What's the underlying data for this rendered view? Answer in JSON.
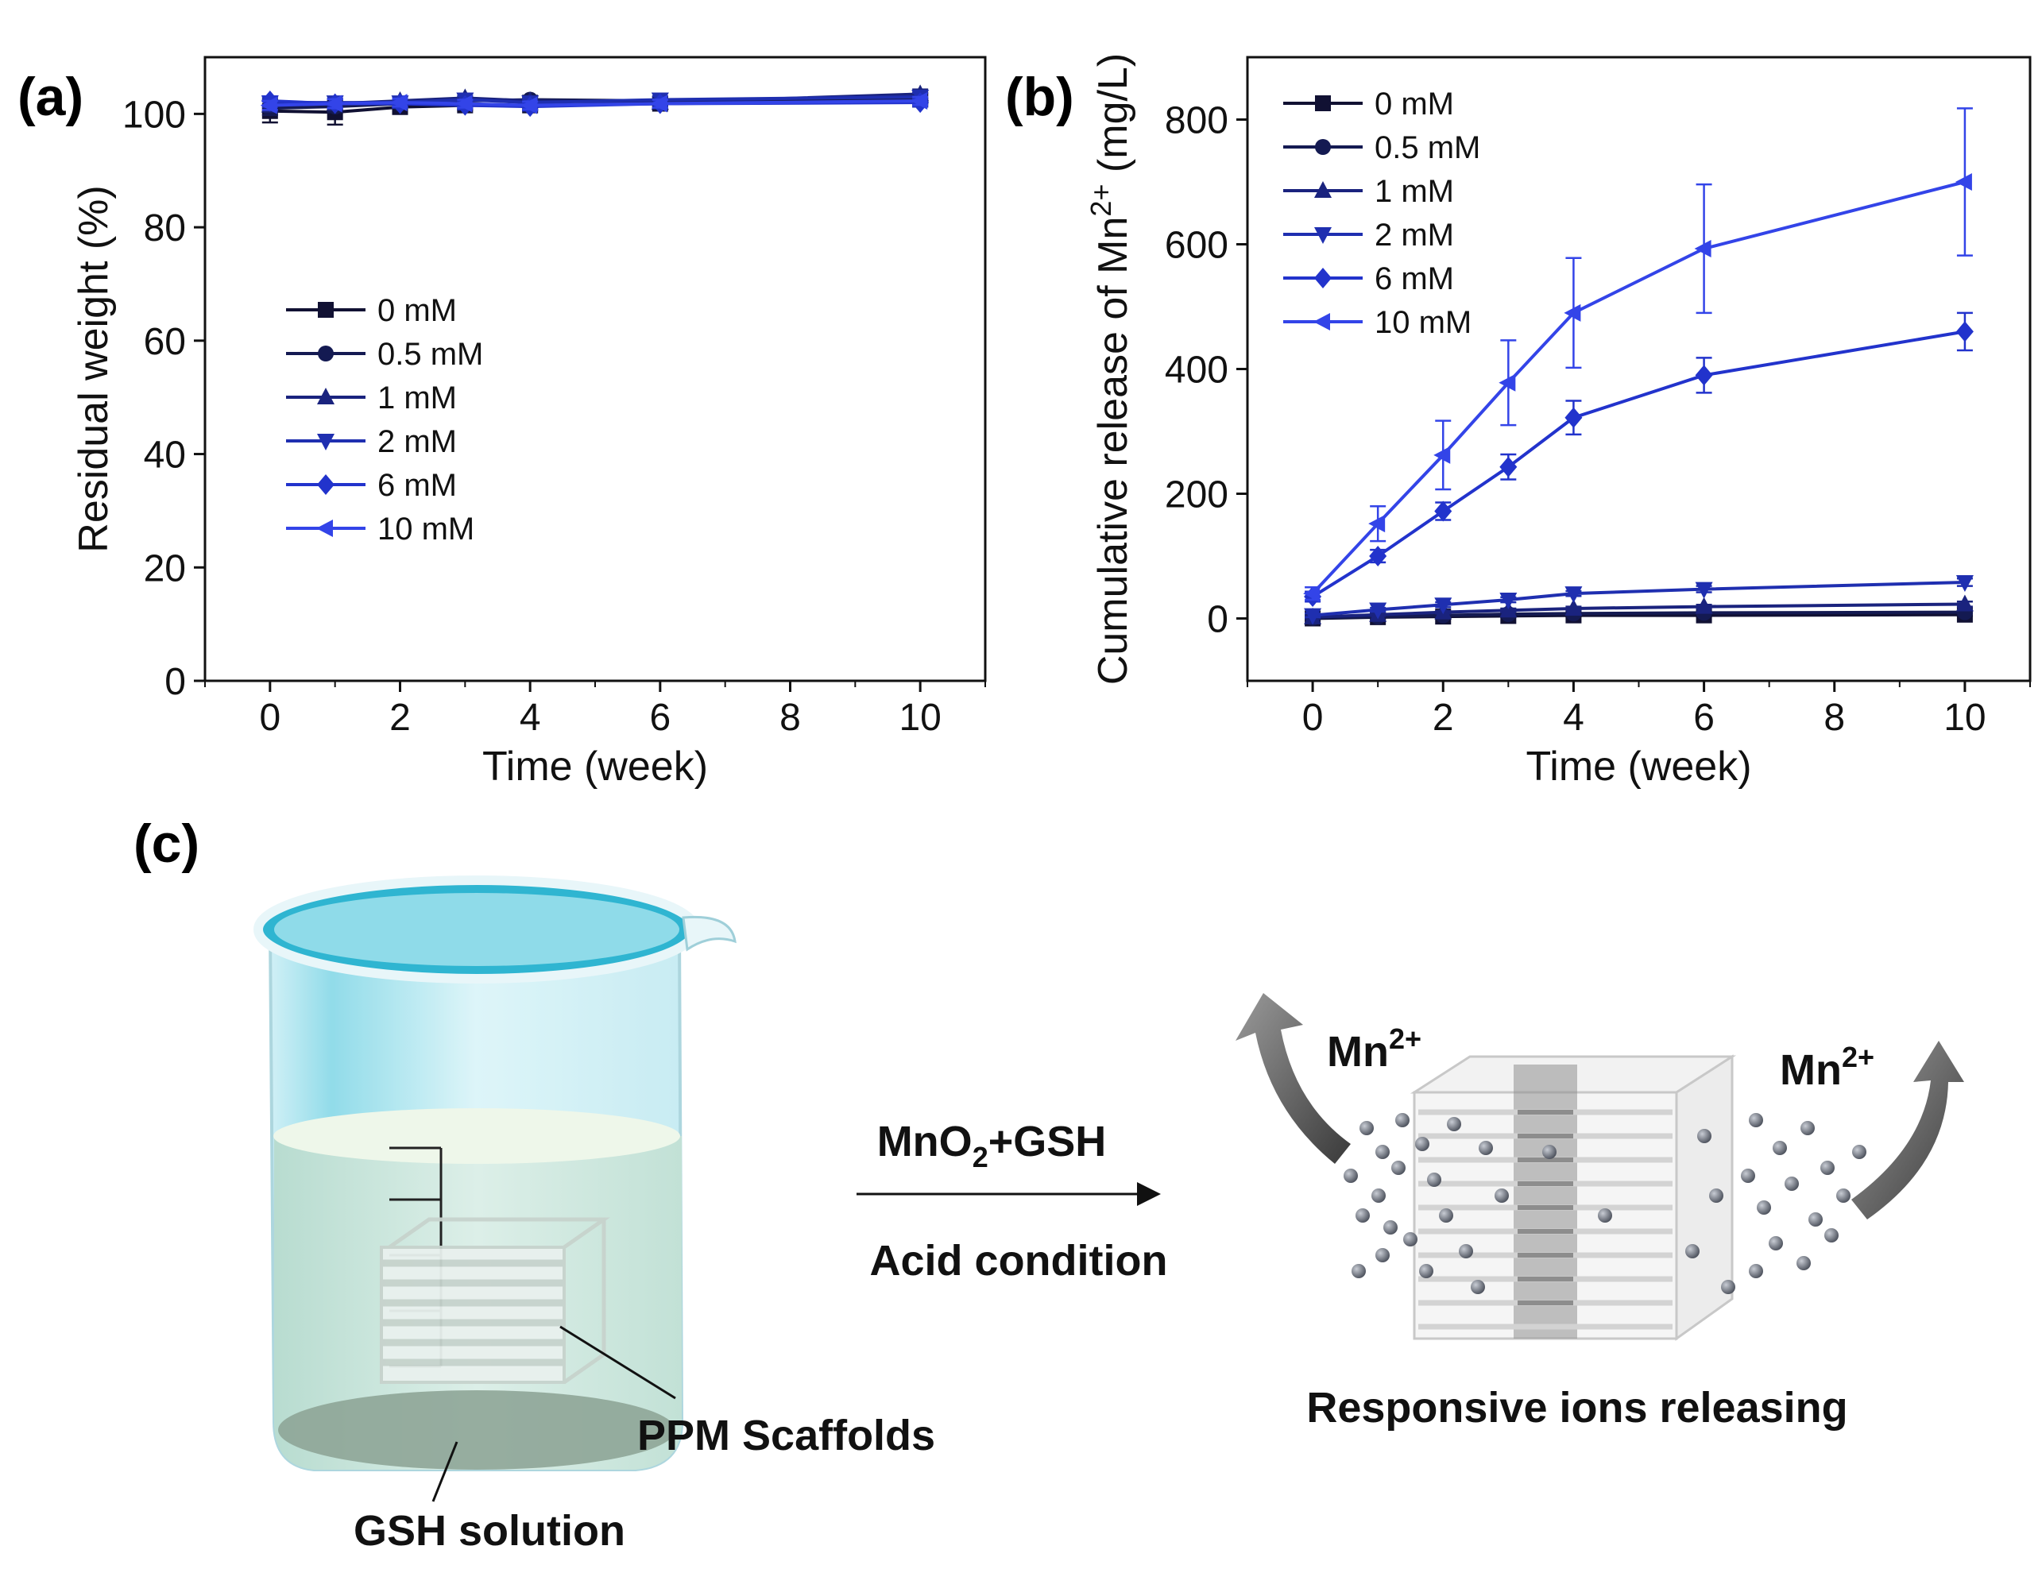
{
  "chart_data": [
    {
      "panel": "(a)",
      "type": "line",
      "xlabel": "Time (week)",
      "ylabel": "Residual weight (%)",
      "xlim": [
        -1,
        11
      ],
      "ylim": [
        0,
        110
      ],
      "xticks": [
        0,
        2,
        4,
        6,
        8,
        10
      ],
      "yticks": [
        0,
        20,
        40,
        60,
        80,
        100
      ],
      "x": [
        0,
        1,
        2,
        3,
        4,
        6,
        10
      ],
      "series": [
        {
          "name": "0 mM",
          "marker": "square",
          "color": "#111133",
          "values": [
            100.5,
            100.3,
            101.2,
            101.5,
            101.5,
            101.8,
            102.5
          ],
          "errors": [
            2.0,
            2.2,
            0.8,
            0.8,
            0.8,
            0.7,
            0.8
          ]
        },
        {
          "name": "0.5 mM",
          "marker": "circle",
          "color": "#141a52",
          "values": [
            101.0,
            101.3,
            101.8,
            102.3,
            102.5,
            102.3,
            102.8
          ],
          "errors": [
            1.2,
            1.0,
            0.8,
            0.7,
            0.7,
            0.7,
            0.8
          ]
        },
        {
          "name": "1 mM",
          "marker": "triangle-up",
          "color": "#1a237e",
          "values": [
            101.5,
            101.8,
            102.3,
            102.8,
            102.3,
            102.0,
            103.5
          ],
          "errors": [
            0.9,
            0.8,
            0.7,
            0.7,
            0.7,
            0.6,
            0.8
          ]
        },
        {
          "name": "2 mM",
          "marker": "triangle-down",
          "color": "#1f2fb0",
          "values": [
            102.0,
            102.0,
            102.0,
            102.5,
            102.0,
            102.5,
            103.0
          ],
          "errors": [
            0.8,
            0.7,
            0.7,
            0.6,
            0.6,
            0.6,
            0.7
          ]
        },
        {
          "name": "6 mM",
          "marker": "diamond",
          "color": "#2233cc",
          "values": [
            102.3,
            101.8,
            101.8,
            101.5,
            101.3,
            101.8,
            102.0
          ],
          "errors": [
            0.8,
            0.8,
            0.7,
            0.7,
            0.7,
            0.7,
            0.7
          ]
        },
        {
          "name": "10 mM",
          "marker": "triangle-left",
          "color": "#3344e8",
          "values": [
            101.5,
            101.8,
            102.0,
            101.8,
            101.5,
            101.8,
            102.3
          ],
          "errors": [
            0.8,
            0.8,
            0.7,
            0.7,
            0.7,
            0.7,
            0.7
          ]
        }
      ]
    },
    {
      "panel": "(b)",
      "type": "line",
      "xlabel": "Time (week)",
      "ylabel_prefix": "Cumulative release of Mn",
      "ylabel_sup": "2+",
      "ylabel_suffix": " (mg/L)",
      "xlim": [
        -1,
        11
      ],
      "ylim": [
        -100,
        900
      ],
      "xticks": [
        0,
        2,
        4,
        6,
        8,
        10
      ],
      "yticks": [
        0,
        200,
        400,
        600,
        800
      ],
      "x": [
        0,
        1,
        2,
        3,
        4,
        6,
        10
      ],
      "series": [
        {
          "name": "0 mM",
          "marker": "square",
          "color": "#111133",
          "values": [
            0,
            2,
            3,
            4,
            5,
            5,
            6
          ],
          "errors": [
            2,
            2,
            2,
            2,
            2,
            2,
            2
          ]
        },
        {
          "name": "0.5 mM",
          "marker": "circle",
          "color": "#141a52",
          "values": [
            1,
            3,
            5,
            7,
            8,
            9,
            10
          ],
          "errors": [
            2,
            2,
            2,
            2,
            2,
            2,
            2
          ]
        },
        {
          "name": "1 mM",
          "marker": "triangle-up",
          "color": "#1a237e",
          "values": [
            2,
            6,
            10,
            13,
            16,
            19,
            23
          ],
          "errors": [
            2,
            2,
            2,
            3,
            3,
            3,
            4
          ]
        },
        {
          "name": "2 mM",
          "marker": "triangle-down",
          "color": "#1f2fb0",
          "values": [
            5,
            14,
            22,
            30,
            40,
            47,
            58
          ],
          "errors": [
            3,
            3,
            4,
            4,
            4,
            5,
            6
          ]
        },
        {
          "name": "6 mM",
          "marker": "diamond",
          "color": "#2233cc",
          "values": [
            35,
            100,
            172,
            243,
            322,
            390,
            460
          ],
          "errors": [
            8,
            10,
            14,
            20,
            27,
            28,
            30
          ]
        },
        {
          "name": "10 mM",
          "marker": "triangle-left",
          "color": "#3344e8",
          "values": [
            40,
            152,
            262,
            378,
            490,
            593,
            700
          ],
          "errors": [
            10,
            28,
            55,
            68,
            88,
            103,
            118
          ]
        }
      ]
    }
  ],
  "legend_labels": [
    "0 mM",
    "0.5 mM",
    "1 mM",
    "2 mM",
    "6 mM",
    "10 mM"
  ],
  "panel_c": {
    "label": "(c)",
    "arrow_top_prefix": "MnO",
    "arrow_top_sub": "2",
    "arrow_top_suffix": "+GSH",
    "arrow_bottom": "Acid condition",
    "scaffold_label": "PPM Scaffolds",
    "solution_label": "GSH solution",
    "ion_base": "Mn",
    "ion_charge": "2+",
    "release_caption": "Responsive ions releasing"
  }
}
